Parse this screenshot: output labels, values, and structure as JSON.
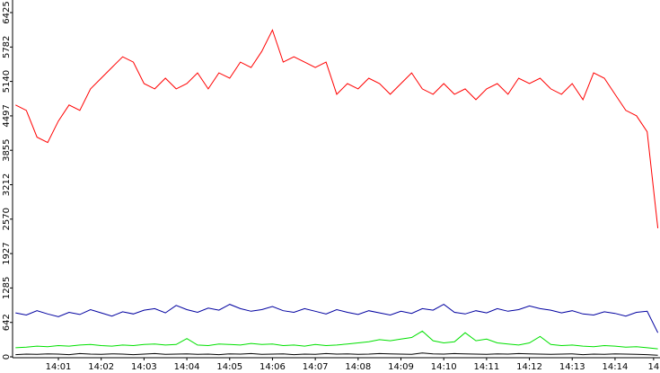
{
  "chart_data": {
    "type": "line",
    "x": [
      0,
      0.25,
      0.5,
      0.75,
      1,
      1.25,
      1.5,
      1.75,
      2,
      2.25,
      2.5,
      2.75,
      3,
      3.25,
      3.5,
      3.75,
      4,
      4.25,
      4.5,
      4.75,
      5,
      5.25,
      5.5,
      5.75,
      6,
      6.25,
      6.5,
      6.75,
      7,
      7.25,
      7.5,
      7.75,
      8,
      8.25,
      8.5,
      8.75,
      9,
      9.25,
      9.5,
      9.75,
      10,
      10.25,
      10.5,
      10.75,
      11,
      11.25,
      11.5,
      11.75,
      12,
      12.25,
      12.5,
      12.75,
      13,
      13.25,
      13.5,
      13.75,
      14,
      14.25,
      14.5,
      14.75,
      15
    ],
    "xlim": [
      -0.07,
      15.05
    ],
    "xticks": [
      {
        "value": 1,
        "label": "14:01"
      },
      {
        "value": 2,
        "label": "14:02"
      },
      {
        "value": 3,
        "label": "14:03"
      },
      {
        "value": 4,
        "label": "14:04"
      },
      {
        "value": 5,
        "label": "14:05"
      },
      {
        "value": 6,
        "label": "14:06"
      },
      {
        "value": 7,
        "label": "14:07"
      },
      {
        "value": 8,
        "label": "14:08"
      },
      {
        "value": 9,
        "label": "14:09"
      },
      {
        "value": 10,
        "label": "14:10"
      },
      {
        "value": 11,
        "label": "14:11"
      },
      {
        "value": 12,
        "label": "14:12"
      },
      {
        "value": 13,
        "label": "14:13"
      },
      {
        "value": 14,
        "label": "14:14"
      },
      {
        "value": 14.9,
        "label": "14"
      }
    ],
    "ylim": [
      0,
      6425
    ],
    "yticks": [
      0,
      642,
      1285,
      1927,
      2570,
      3212,
      3855,
      4497,
      5140,
      5782,
      6425
    ],
    "series": [
      {
        "color": "#ff0000",
        "values": [
          4700,
          4600,
          4100,
          4000,
          4400,
          4700,
          4600,
          5000,
          5200,
          5400,
          5600,
          5500,
          5100,
          5000,
          5200,
          5000,
          5100,
          5300,
          5000,
          5300,
          5200,
          5500,
          5400,
          5700,
          6100,
          5500,
          5600,
          5500,
          5400,
          5500,
          4900,
          5100,
          5000,
          5200,
          5100,
          4900,
          5100,
          5300,
          5000,
          4900,
          5100,
          4900,
          5000,
          4800,
          5000,
          5100,
          4900,
          5200,
          5100,
          5200,
          5000,
          4900,
          5100,
          4800,
          5300,
          5200,
          4900,
          4600,
          4500,
          4200,
          2400
        ]
      },
      {
        "color": "#0000a0",
        "values": [
          820,
          780,
          860,
          800,
          750,
          830,
          790,
          880,
          820,
          760,
          840,
          800,
          870,
          900,
          820,
          960,
          880,
          830,
          910,
          870,
          980,
          900,
          850,
          880,
          940,
          860,
          830,
          900,
          850,
          800,
          880,
          830,
          790,
          860,
          820,
          780,
          850,
          810,
          900,
          870,
          980,
          830,
          800,
          860,
          820,
          900,
          850,
          880,
          950,
          900,
          870,
          820,
          860,
          800,
          780,
          840,
          810,
          760,
          830,
          850,
          450
        ]
      },
      {
        "color": "#00e000",
        "values": [
          170,
          180,
          200,
          190,
          210,
          200,
          220,
          230,
          210,
          200,
          220,
          210,
          230,
          240,
          220,
          230,
          340,
          220,
          210,
          240,
          230,
          220,
          250,
          230,
          240,
          210,
          220,
          200,
          230,
          210,
          220,
          240,
          260,
          280,
          320,
          300,
          330,
          360,
          480,
          300,
          260,
          280,
          450,
          300,
          330,
          260,
          240,
          220,
          260,
          380,
          230,
          210,
          220,
          200,
          190,
          210,
          200,
          180,
          190,
          170,
          150
        ]
      },
      {
        "color": "#000000",
        "values": [
          40,
          50,
          45,
          55,
          50,
          40,
          60,
          50,
          45,
          55,
          50,
          40,
          50,
          60,
          45,
          50,
          55,
          45,
          50,
          40,
          55,
          50,
          60,
          45,
          50,
          55,
          40,
          50,
          45,
          60,
          50,
          55,
          45,
          50,
          60,
          55,
          50,
          45,
          70,
          55,
          50,
          60,
          55,
          50,
          45,
          55,
          50,
          60,
          55,
          50,
          45,
          50,
          55,
          40,
          50,
          45,
          55,
          50,
          45,
          40,
          30
        ]
      }
    ]
  }
}
